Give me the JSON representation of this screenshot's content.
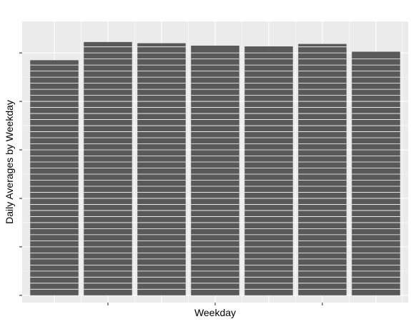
{
  "chart_data": {
    "type": "bar",
    "xlabel": "Weekday",
    "ylabel": "Daily Averages by Weekday",
    "categories": [
      "",
      "",
      "",
      "",
      "",
      "",
      ""
    ],
    "values": [
      9.7,
      10.45,
      10.4,
      10.3,
      10.27,
      10.37,
      10.05
    ],
    "ylim": [
      -0.3,
      11.3
    ],
    "y_breaks": [
      0,
      2,
      4,
      6,
      8,
      10
    ],
    "x_tick_positions": [
      2,
      4,
      6
    ],
    "bar_stripe_step": 0.25,
    "grid": true,
    "colors": {
      "panel": "#EBEBEB",
      "grid": "#FFFFFF",
      "bar": "#595959",
      "tick": "#333333"
    }
  }
}
